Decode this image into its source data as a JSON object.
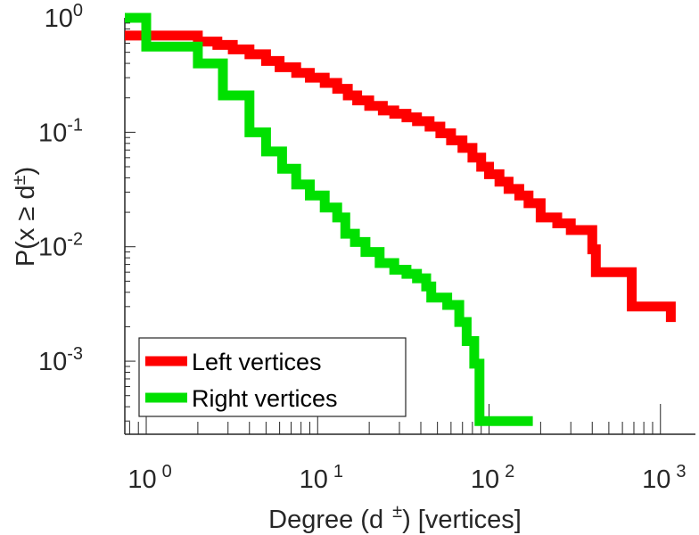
{
  "chart_data": {
    "type": "line",
    "step": true,
    "xscale": "log",
    "yscale": "log",
    "xlim": [
      0.75,
      1600
    ],
    "ylim": [
      0.00023,
      1.0
    ],
    "grid": false,
    "legend_position": "bottom-left",
    "title": "",
    "xlabel": {
      "main": "Degree (d",
      "sup": "±",
      "tail": ") [vertices]"
    },
    "ylabel": {
      "main": "P(x ≥ d",
      "sup": "±",
      "tail": ")"
    },
    "x_ticks": [
      {
        "value": 1,
        "base": "10",
        "exp": "0"
      },
      {
        "value": 10,
        "base": "10",
        "exp": "1"
      },
      {
        "value": 100,
        "base": "10",
        "exp": "2"
      },
      {
        "value": 1000,
        "base": "10",
        "exp": "3"
      }
    ],
    "y_ticks": [
      {
        "value": 1,
        "base": "10",
        "exp": "0"
      },
      {
        "value": 0.1,
        "base": "10",
        "exp": "-1"
      },
      {
        "value": 0.01,
        "base": "10",
        "exp": "-2"
      },
      {
        "value": 0.001,
        "base": "10",
        "exp": "-3"
      }
    ],
    "series": [
      {
        "name": "Left vertices",
        "color": "#ff0000",
        "points": [
          [
            0.75,
            0.7
          ],
          [
            2.0,
            0.62
          ],
          [
            2.6,
            0.58
          ],
          [
            3.2,
            0.53
          ],
          [
            4.0,
            0.48
          ],
          [
            5.0,
            0.42
          ],
          [
            6.0,
            0.37
          ],
          [
            7.5,
            0.33
          ],
          [
            9.0,
            0.3
          ],
          [
            11.0,
            0.27
          ],
          [
            13.0,
            0.24
          ],
          [
            15.0,
            0.21
          ],
          [
            17.0,
            0.19
          ],
          [
            20.0,
            0.17
          ],
          [
            24.0,
            0.155
          ],
          [
            28.0,
            0.145
          ],
          [
            33.0,
            0.135
          ],
          [
            38.0,
            0.125
          ],
          [
            45.0,
            0.112
          ],
          [
            52.0,
            0.098
          ],
          [
            60.0,
            0.085
          ],
          [
            70.0,
            0.073
          ],
          [
            80.0,
            0.06
          ],
          [
            90.0,
            0.05
          ],
          [
            100.0,
            0.043
          ],
          [
            115.0,
            0.037
          ],
          [
            130.0,
            0.032
          ],
          [
            150.0,
            0.028
          ],
          [
            170.0,
            0.024
          ],
          [
            200.0,
            0.018
          ],
          [
            250.0,
            0.016
          ],
          [
            300.0,
            0.014
          ],
          [
            400.0,
            0.0095
          ],
          [
            420.0,
            0.006
          ],
          [
            680.0,
            0.003
          ],
          [
            1150.0,
            0.0022
          ]
        ]
      },
      {
        "name": "Right vertices",
        "color": "#00e000",
        "points": [
          [
            0.75,
            1.0
          ],
          [
            1.0,
            0.56
          ],
          [
            2.0,
            0.4
          ],
          [
            2.8,
            0.21
          ],
          [
            4.0,
            0.1
          ],
          [
            5.0,
            0.068
          ],
          [
            6.2,
            0.048
          ],
          [
            7.5,
            0.035
          ],
          [
            9.0,
            0.028
          ],
          [
            11.0,
            0.022
          ],
          [
            13.0,
            0.018
          ],
          [
            14.5,
            0.013
          ],
          [
            16.5,
            0.011
          ],
          [
            19.0,
            0.009
          ],
          [
            23.0,
            0.0072
          ],
          [
            28.0,
            0.0063
          ],
          [
            33.0,
            0.0058
          ],
          [
            38.0,
            0.0053
          ],
          [
            43.0,
            0.0045
          ],
          [
            46.0,
            0.0036
          ],
          [
            57.0,
            0.0031
          ],
          [
            67.0,
            0.0022
          ],
          [
            74.0,
            0.0015
          ],
          [
            82.0,
            0.00095
          ],
          [
            88.0,
            0.0003
          ],
          [
            180.0,
            0.0003
          ]
        ]
      }
    ]
  }
}
